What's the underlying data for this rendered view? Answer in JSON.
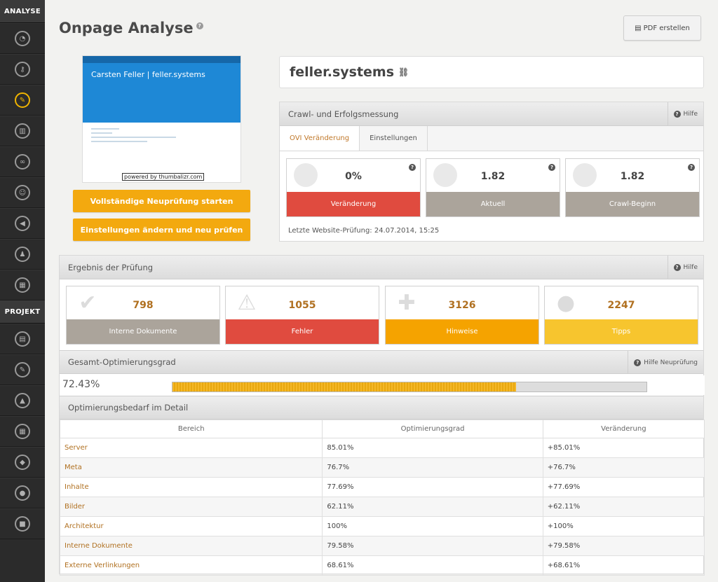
{
  "sidebar": {
    "section_analyse": "ANALYSE",
    "section_projekt": "PROJEKT",
    "analyse_items": [
      "gauge-icon",
      "key-icon",
      "wrench-icon",
      "bar-chart-icon",
      "link-icon",
      "user-icon",
      "megaphone-icon",
      "users-icon",
      "presentation-icon"
    ],
    "projekt_items": [
      "document-icon",
      "edit-icon",
      "warning-icon",
      "calendar-icon",
      "tag-icon",
      "person-icon",
      "chat-icon"
    ],
    "active_color": "#f0b400"
  },
  "header": {
    "title": "Onpage Analyse",
    "help": "?",
    "pdf_button": "PDF erstellen"
  },
  "thumbnail": {
    "site_title": "Carsten Feller | feller.systems",
    "powered": "powered by thumbalizr.com"
  },
  "actions": {
    "full_check": "Vollständige Neuprüfung starten",
    "change_settings": "Einstellungen ändern und neu prüfen"
  },
  "site": {
    "name": "feller.systems"
  },
  "crawl": {
    "title": "Crawl- und Erfolgsmessung",
    "help": "Hilfe",
    "tabs": [
      "OVI Veränderung",
      "Einstellungen"
    ],
    "cards": [
      {
        "value": "0%",
        "label": "Veränderung",
        "color": "#e04b3f"
      },
      {
        "value": "1.82",
        "label": "Aktuell",
        "color": "#aba49b"
      },
      {
        "value": "1.82",
        "label": "Crawl-Beginn",
        "color": "#aba49b"
      }
    ],
    "last_check": "Letzte Website-Prüfung: 24.07.2014, 15:25"
  },
  "result": {
    "title": "Ergebnis der Prüfung",
    "help": "Hilfe",
    "cards": [
      {
        "value": "798",
        "label": "Interne Dokumente",
        "color": "#aba49b"
      },
      {
        "value": "1055",
        "label": "Fehler",
        "color": "#e04b3f"
      },
      {
        "value": "3126",
        "label": "Hinweise",
        "color": "#f5a300"
      },
      {
        "value": "2247",
        "label": "Tipps",
        "color": "#f7c52e"
      }
    ]
  },
  "optimization": {
    "title": "Gesamt-Optimierungsgrad",
    "help": "Hilfe Neuprüfung",
    "value_text": "72.43%",
    "value": 72.43
  },
  "detail": {
    "title": "Optimierungsbedarf im Detail",
    "columns": [
      "Bereich",
      "Optimierungsgrad",
      "Veränderung"
    ],
    "rows": [
      [
        "Server",
        "85.01%",
        "+85.01%"
      ],
      [
        "Meta",
        "76.7%",
        "+76.7%"
      ],
      [
        "Inhalte",
        "77.69%",
        "+77.69%"
      ],
      [
        "Bilder",
        "62.11%",
        "+62.11%"
      ],
      [
        "Architektur",
        "100%",
        "+100%"
      ],
      [
        "Interne Dokumente",
        "79.58%",
        "+79.58%"
      ],
      [
        "Externe Verlinkungen",
        "68.61%",
        "+68.61%"
      ]
    ]
  }
}
